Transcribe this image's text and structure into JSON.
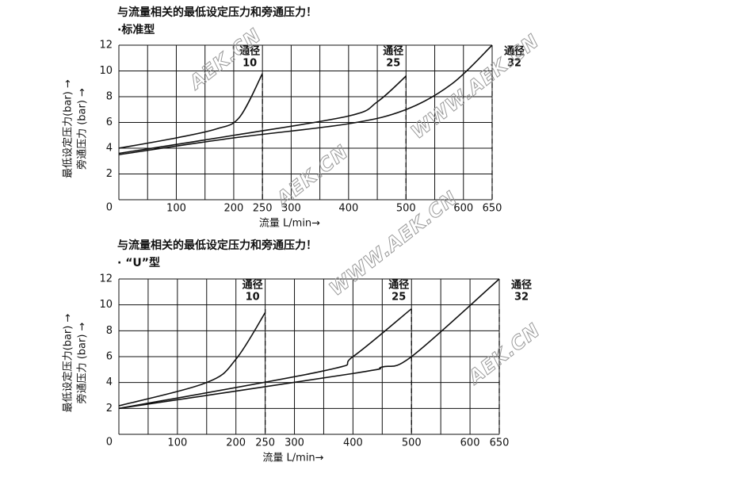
{
  "chart_data": [
    {
      "type": "line",
      "title": "与流量相关的最低设定压力和旁通压力！",
      "subtitle": "·标准型",
      "ylabel": [
        "最低设定压力(bar) →",
        "旁通压力 (bar) →"
      ],
      "xlabel": "流量 L/min→",
      "xlim": [
        0,
        650
      ],
      "ylim": [
        0,
        12
      ],
      "xticks": [
        100,
        200,
        250,
        300,
        400,
        500,
        600,
        650
      ],
      "xgrid": [
        50,
        100,
        150,
        200,
        250,
        300,
        350,
        400,
        450,
        500,
        550,
        600,
        650
      ],
      "yticks": [
        0,
        2,
        4,
        6,
        8,
        10,
        12
      ],
      "grid": true,
      "series": [
        {
          "name": "通径",
          "size": "10",
          "limit": 250,
          "color": "#111111",
          "x": [
            0,
            100,
            170,
            210,
            250
          ],
          "values": [
            4.0,
            4.8,
            5.5,
            6.4,
            9.8
          ]
        },
        {
          "name": "通径",
          "size": "25",
          "limit": 500,
          "color": "#111111",
          "x": [
            0,
            200,
            400,
            450,
            500
          ],
          "values": [
            3.6,
            5.0,
            6.5,
            7.6,
            9.6
          ]
        },
        {
          "name": "通径",
          "size": "32",
          "limit": 650,
          "color": "#111111",
          "x": [
            0,
            200,
            400,
            500,
            580,
            650
          ],
          "values": [
            3.5,
            4.8,
            5.9,
            7.0,
            9.0,
            12.0
          ]
        }
      ]
    },
    {
      "type": "line",
      "title": "与流量相关的最低设定压力和旁通压力！",
      "subtitle": "·  “U”型",
      "ylabel": [
        "最低设定压力(bar) →",
        "旁通压力 (bar) →"
      ],
      "xlabel": "流量 L/min→",
      "xlim": [
        0,
        650
      ],
      "ylim": [
        0,
        12
      ],
      "xticks": [
        100,
        200,
        250,
        300,
        400,
        500,
        600,
        650
      ],
      "xgrid": [
        50,
        100,
        150,
        200,
        250,
        300,
        350,
        400,
        450,
        500,
        550,
        600,
        650
      ],
      "yticks": [
        0,
        2,
        4,
        6,
        8,
        10,
        12
      ],
      "grid": true,
      "series": [
        {
          "name": "通径",
          "size": "10",
          "limit": 250,
          "color": "#111111",
          "x": [
            0,
            150,
            200,
            250
          ],
          "values": [
            2.2,
            4.0,
            5.8,
            9.4
          ]
        },
        {
          "name": "通径",
          "size": "25",
          "limit": 500,
          "color": "#111111",
          "x": [
            0,
            350,
            400,
            500
          ],
          "values": [
            2.0,
            4.9,
            6.0,
            9.7
          ]
        },
        {
          "name": "通径",
          "size": "32",
          "limit": 650,
          "color": "#111111",
          "x": [
            0,
            400,
            450,
            500,
            650
          ],
          "values": [
            2.0,
            4.7,
            5.2,
            6.0,
            12.0
          ]
        }
      ]
    }
  ],
  "watermarks": [
    "AEK.CN",
    "WWW.AEK.CN",
    "AEK.CN",
    "WWW.AEK.CN",
    "AEK.CN"
  ]
}
